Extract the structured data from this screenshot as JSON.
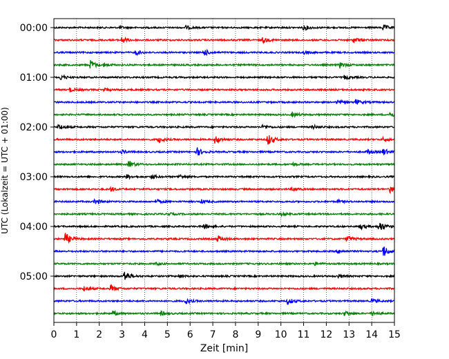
{
  "chart_data": {
    "type": "line",
    "title": "",
    "xlabel": "Zeit  [min]",
    "ylabel": "UTC (Lokalzeit = UTC + 01:00)",
    "xlim": [
      0,
      15
    ],
    "x_ticks": [
      "0",
      "1",
      "2",
      "3",
      "4",
      "5",
      "6",
      "7",
      "8",
      "9",
      "10",
      "11",
      "12",
      "13",
      "14",
      "15"
    ],
    "y_ticks": [
      "00:00",
      "01:00",
      "02:00",
      "03:00",
      "04:00",
      "05:00"
    ],
    "trace_interval_min": 15,
    "vertical_grid": "dotted",
    "colors_cycle": [
      "#000000",
      "#ff0000",
      "#0000ff",
      "#008000"
    ],
    "traces": [
      {
        "start": "00:00",
        "color": "#000000",
        "events": [
          [
            2.9,
            1.5
          ],
          [
            5.8,
            2.5
          ],
          [
            11.0,
            4
          ],
          [
            14.5,
            4
          ]
        ]
      },
      {
        "start": "00:15",
        "color": "#ff0000",
        "events": [
          [
            3.0,
            5
          ],
          [
            9.2,
            4
          ],
          [
            13.2,
            4
          ]
        ]
      },
      {
        "start": "00:30",
        "color": "#0000ff",
        "events": [
          [
            3.6,
            3.5
          ],
          [
            6.6,
            5
          ],
          [
            11.0,
            2
          ]
        ]
      },
      {
        "start": "00:45",
        "color": "#008000",
        "events": [
          [
            1.6,
            7
          ],
          [
            2.2,
            2.5
          ],
          [
            12.6,
            4
          ]
        ]
      },
      {
        "start": "01:00",
        "color": "#000000",
        "events": [
          [
            0.3,
            4
          ],
          [
            12.8,
            3
          ]
        ]
      },
      {
        "start": "01:15",
        "color": "#ff0000",
        "events": [
          [
            0.7,
            3
          ],
          [
            2.2,
            2
          ]
        ]
      },
      {
        "start": "01:30",
        "color": "#0000ff",
        "events": [
          [
            12.5,
            3
          ],
          [
            13.3,
            3.5
          ]
        ]
      },
      {
        "start": "01:45",
        "color": "#008000",
        "events": [
          [
            10.5,
            3.5
          ],
          [
            14.8,
            4
          ]
        ]
      },
      {
        "start": "02:00",
        "color": "#000000",
        "events": [
          [
            0.2,
            4
          ],
          [
            9.2,
            3
          ],
          [
            11.4,
            2.5
          ]
        ]
      },
      {
        "start": "02:15",
        "color": "#ff0000",
        "events": [
          [
            4.6,
            5
          ],
          [
            7.1,
            7
          ],
          [
            9.4,
            9
          ],
          [
            14.5,
            3
          ]
        ]
      },
      {
        "start": "02:30",
        "color": "#0000ff",
        "events": [
          [
            3.0,
            2.5
          ],
          [
            6.3,
            6
          ],
          [
            13.8,
            3
          ],
          [
            14.5,
            5
          ]
        ]
      },
      {
        "start": "02:45",
        "color": "#008000",
        "events": [
          [
            3.3,
            5
          ],
          [
            10.5,
            2
          ]
        ]
      },
      {
        "start": "03:00",
        "color": "#000000",
        "events": [
          [
            3.2,
            3
          ],
          [
            4.3,
            3
          ],
          [
            5.5,
            3
          ]
        ]
      },
      {
        "start": "03:15",
        "color": "#ff0000",
        "events": [
          [
            2.5,
            3
          ],
          [
            10.5,
            2.5
          ],
          [
            14.8,
            5
          ]
        ]
      },
      {
        "start": "03:30",
        "color": "#0000ff",
        "events": [
          [
            1.8,
            4
          ],
          [
            4.5,
            3
          ],
          [
            6.5,
            2.5
          ],
          [
            12.5,
            2
          ]
        ]
      },
      {
        "start": "03:45",
        "color": "#008000",
        "events": [
          [
            5.0,
            2
          ],
          [
            10.0,
            2
          ]
        ]
      },
      {
        "start": "04:00",
        "color": "#000000",
        "events": [
          [
            6.6,
            4
          ],
          [
            13.5,
            4
          ],
          [
            14.3,
            9
          ]
        ]
      },
      {
        "start": "04:15",
        "color": "#ff0000",
        "events": [
          [
            0.5,
            9
          ],
          [
            7.2,
            5
          ],
          [
            12.9,
            5
          ]
        ]
      },
      {
        "start": "04:30",
        "color": "#0000ff",
        "events": [
          [
            12.5,
            2.5
          ],
          [
            14.5,
            9
          ]
        ]
      },
      {
        "start": "04:45",
        "color": "#008000",
        "events": [
          [
            4.5,
            2
          ],
          [
            11.5,
            2
          ]
        ]
      },
      {
        "start": "05:00",
        "color": "#000000",
        "events": [
          [
            3.1,
            9
          ],
          [
            5.5,
            2.5
          ],
          [
            12.5,
            3
          ]
        ]
      },
      {
        "start": "05:15",
        "color": "#ff0000",
        "events": [
          [
            1.3,
            3.5
          ],
          [
            2.5,
            5
          ]
        ]
      },
      {
        "start": "05:30",
        "color": "#0000ff",
        "events": [
          [
            5.8,
            4
          ],
          [
            10.3,
            5
          ],
          [
            14.0,
            3
          ]
        ]
      },
      {
        "start": "05:45",
        "color": "#008000",
        "events": [
          [
            2.6,
            3.5
          ],
          [
            4.7,
            3
          ],
          [
            12.8,
            3.5
          ],
          [
            14.0,
            3.5
          ]
        ]
      }
    ]
  }
}
